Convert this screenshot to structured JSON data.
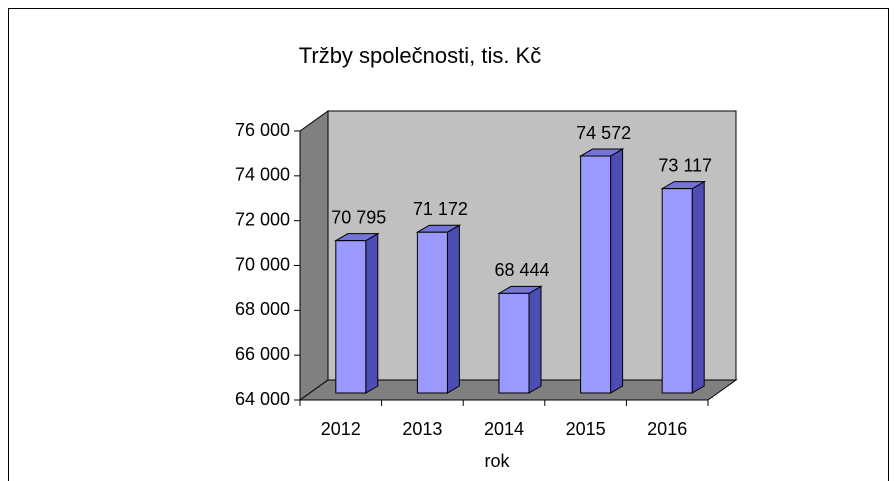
{
  "chart_data": {
    "type": "bar3d",
    "title": "Tržby společnosti, tis. Kč",
    "x_label": "rok",
    "categories": [
      "2012",
      "2013",
      "2014",
      "2015",
      "2016"
    ],
    "values": [
      70795,
      71172,
      68444,
      74572,
      73117
    ],
    "value_labels": [
      "70 795",
      "71 172",
      "68 444",
      "74 572",
      "73 117"
    ],
    "color": "#9999ff",
    "ylim": [
      64000,
      76000
    ],
    "yticks": [
      {
        "value": 64000,
        "label": "64 000"
      },
      {
        "value": 66000,
        "label": "66 000"
      },
      {
        "value": 68000,
        "label": "68 000"
      },
      {
        "value": 70000,
        "label": "70 000"
      },
      {
        "value": 72000,
        "label": "72 000"
      },
      {
        "value": 74000,
        "label": "74 000"
      },
      {
        "value": 76000,
        "label": "76 000"
      }
    ],
    "grid": false
  }
}
